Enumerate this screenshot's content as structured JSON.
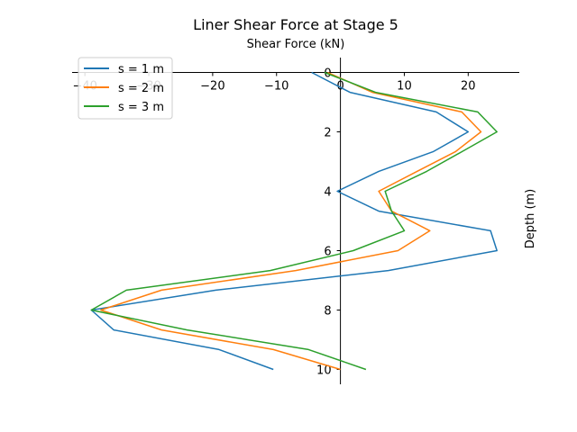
{
  "chart_data": {
    "type": "line",
    "title": "Liner Shear Force at Stage 5",
    "xlabel": "Shear Force (kN)",
    "ylabel": "Depth (m)",
    "xlim": [
      -42,
      28
    ],
    "ylim": [
      10.5,
      -0.5
    ],
    "x_ticks": [
      -40,
      -30,
      -20,
      -10,
      0,
      10,
      20
    ],
    "y_ticks": [
      0,
      2,
      4,
      6,
      8,
      10
    ],
    "legend_position": "top-left",
    "grid": false,
    "series": [
      {
        "name": "s = 1 m",
        "color": "#1f77b4",
        "points": [
          [
            -4.5,
            0
          ],
          [
            1.5,
            0.67
          ],
          [
            15,
            1.33
          ],
          [
            20,
            2
          ],
          [
            14.5,
            2.67
          ],
          [
            6,
            3.33
          ],
          [
            -0.5,
            4
          ],
          [
            6,
            4.67
          ],
          [
            23.5,
            5.33
          ],
          [
            24.5,
            6
          ],
          [
            7.5,
            6.67
          ],
          [
            -19.5,
            7.33
          ],
          [
            -39,
            8
          ],
          [
            -35.5,
            8.67
          ],
          [
            -19,
            9.33
          ],
          [
            -10.5,
            10
          ]
        ]
      },
      {
        "name": "s = 2 m",
        "color": "#ff7f0e",
        "points": [
          [
            -2,
            0
          ],
          [
            5,
            0.67
          ],
          [
            19,
            1.33
          ],
          [
            22,
            2
          ],
          [
            18,
            2.67
          ],
          [
            12,
            3.33
          ],
          [
            6,
            4
          ],
          [
            8,
            4.67
          ],
          [
            14,
            5.33
          ],
          [
            9,
            6
          ],
          [
            -7,
            6.67
          ],
          [
            -28,
            7.33
          ],
          [
            -37.5,
            8
          ],
          [
            -28,
            8.67
          ],
          [
            -10.5,
            9.33
          ],
          [
            0,
            10
          ]
        ]
      },
      {
        "name": "s = 3 m",
        "color": "#2ca02c",
        "points": [
          [
            -2.5,
            0
          ],
          [
            5.5,
            0.67
          ],
          [
            21.5,
            1.33
          ],
          [
            24.5,
            2
          ],
          [
            19,
            2.67
          ],
          [
            13.5,
            3.33
          ],
          [
            7,
            4
          ],
          [
            8,
            4.67
          ],
          [
            10,
            5.33
          ],
          [
            2,
            6
          ],
          [
            -11,
            6.67
          ],
          [
            -33.5,
            7.33
          ],
          [
            -39,
            8
          ],
          [
            -24,
            8.67
          ],
          [
            -5,
            9.33
          ],
          [
            4,
            10
          ]
        ]
      }
    ]
  }
}
